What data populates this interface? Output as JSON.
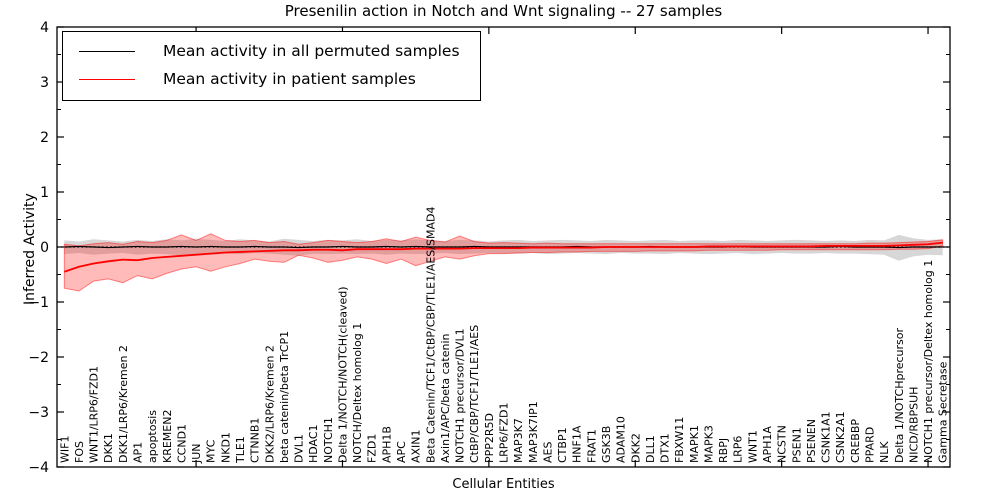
{
  "legend": {
    "items": [
      {
        "label": "Mean activity in all permuted samples",
        "color": "#000000"
      },
      {
        "label": "Mean activity in patient samples",
        "color": "#ff0000"
      }
    ]
  },
  "chart_data": {
    "type": "line",
    "title": "Presenilin action in Notch and Wnt signaling -- 27 samples",
    "xlabel": "Cellular Entities",
    "ylabel": "Inferred Activity",
    "ylim": [
      -4,
      4
    ],
    "y_ticks": [
      4,
      3,
      2,
      1,
      0,
      -1,
      -2,
      -3,
      -4
    ],
    "y_tick_labels": [
      "4",
      "3",
      "2",
      "1",
      "0",
      "−1",
      "−2",
      "−3",
      "−4"
    ],
    "x_major_ticks": [
      10,
      20,
      30,
      40,
      50,
      60
    ],
    "grid": false,
    "legend_position": "upper left",
    "zero_line": {
      "style": "dotted",
      "color": "#000000",
      "y": 0
    },
    "colors": {
      "permuted_line": "#000000",
      "patient_line": "#ff0000",
      "permuted_band": "rgba(110,110,110,0.28)",
      "patient_band": "rgba(255,0,0,0.27)",
      "patient_band_edge": "rgba(255,0,0,0.45)"
    },
    "categories": [
      "WIF1",
      "FOS",
      "WNT1/LRP6/FZD1",
      "DKK1",
      "DKK1/LRP6/Kremen 2",
      "AP1",
      "apoptosis",
      "KREMEN2",
      "CCND1",
      "JUN",
      "MYC",
      "NKD1",
      "TLE1",
      "CTNNB1",
      "DKK2/LRP6/Kremen 2",
      "beta catenin/beta TrCP1",
      "DVL1",
      "HDAC1",
      "NOTCH1",
      "Delta 1/NOTCH/NOTCH(cleaved)",
      "NOTCH/Deltex homolog 1",
      "FZD1",
      "APH1B",
      "APC",
      "AXIN1",
      "Beta Catenin/TCF1/CtBP/CBP/TLE1/AES/SMAD4",
      "Axin1/APC/beta catenin",
      "NOTCH1 precursor/DVL1",
      "CtBP/CBP/TCF1/TLE1/AES",
      "PPP2R5D",
      "LRP6/FZD1",
      "MAP3K7",
      "MAP3K7IP1",
      "AES",
      "CTBP1",
      "HNF1A",
      "FRAT1",
      "GSK3B",
      "ADAM10",
      "DKK2",
      "DLL1",
      "DTX1",
      "FBXW11",
      "MAPK1",
      "MAPK3",
      "RBPJ",
      "LRP6",
      "WNT1",
      "APH1A",
      "NCSTN",
      "PSEN1",
      "PSENEN",
      "CSNK1A1",
      "CSNK2A1",
      "CREBBP",
      "PPARD",
      "NLK",
      "Delta 1/NOTCHprecursor",
      "NICD/RBPSUH",
      "NOTCH1 precursor/Deltex homolog 1",
      "Gamma Secretase"
    ],
    "series": [
      {
        "name": "Mean activity in all permuted samples",
        "color": "#000000",
        "values": [
          0,
          0.01,
          0,
          -0.01,
          0,
          0.01,
          0,
          0,
          0.01,
          0,
          0.01,
          0,
          0,
          0.01,
          0,
          0,
          -0.01,
          0,
          0,
          0.01,
          0,
          0,
          0.01,
          0,
          0.01,
          0,
          0,
          0,
          0.01,
          0,
          0,
          0,
          0,
          0,
          0,
          0.01,
          0,
          0,
          0,
          0,
          0.01,
          0,
          0,
          0,
          0,
          0,
          0.01,
          0,
          0,
          0,
          0,
          0,
          0,
          0.01,
          0,
          0,
          0,
          -0.01,
          0,
          0,
          0
        ],
        "band_upper": [
          0.12,
          0.1,
          0.14,
          0.12,
          0.1,
          0.13,
          0.11,
          0.14,
          0.12,
          0.15,
          0.13,
          0.11,
          0.14,
          0.12,
          0.1,
          0.15,
          0.13,
          0.11,
          0.13,
          0.12,
          0.14,
          0.11,
          0.13,
          0.12,
          0.14,
          0.12,
          0.11,
          0.13,
          0.12,
          0.1,
          0.12,
          0.13,
          0.11,
          0.12,
          0.13,
          0.12,
          0.11,
          0.13,
          0.12,
          0.11,
          0.12,
          0.13,
          0.11,
          0.12,
          0.12,
          0.11,
          0.13,
          0.12,
          0.11,
          0.12,
          0.13,
          0.12,
          0.11,
          0.12,
          0.11,
          0.13,
          0.12,
          0.22,
          0.16,
          0.13,
          0.14
        ],
        "band_lower": [
          -0.13,
          -0.11,
          -0.14,
          -0.12,
          -0.11,
          -0.14,
          -0.12,
          -0.13,
          -0.15,
          -0.12,
          -0.14,
          -0.12,
          -0.13,
          -0.11,
          -0.12,
          -0.14,
          -0.16,
          -0.12,
          -0.13,
          -0.12,
          -0.13,
          -0.12,
          -0.14,
          -0.12,
          -0.13,
          -0.12,
          -0.11,
          -0.13,
          -0.12,
          -0.11,
          -0.12,
          -0.12,
          -0.11,
          -0.13,
          -0.12,
          -0.11,
          -0.12,
          -0.13,
          -0.11,
          -0.12,
          -0.12,
          -0.13,
          -0.11,
          -0.12,
          -0.13,
          -0.12,
          -0.11,
          -0.13,
          -0.12,
          -0.11,
          -0.12,
          -0.12,
          -0.11,
          -0.12,
          -0.12,
          -0.13,
          -0.14,
          -0.25,
          -0.17,
          -0.14,
          -0.15
        ]
      },
      {
        "name": "Mean activity in patient samples",
        "color": "#ff0000",
        "values": [
          -0.45,
          -0.36,
          -0.3,
          -0.26,
          -0.23,
          -0.24,
          -0.2,
          -0.18,
          -0.16,
          -0.14,
          -0.12,
          -0.1,
          -0.09,
          -0.08,
          -0.07,
          -0.06,
          -0.06,
          -0.05,
          -0.05,
          -0.06,
          -0.04,
          -0.04,
          -0.04,
          -0.04,
          -0.03,
          -0.03,
          -0.03,
          -0.03,
          -0.02,
          -0.02,
          -0.02,
          -0.02,
          -0.01,
          -0.01,
          -0.01,
          -0.01,
          -0.01,
          0,
          0,
          0,
          0,
          0,
          0,
          0,
          0.01,
          0.01,
          0.01,
          0.01,
          0.01,
          0.01,
          0.01,
          0.01,
          0.02,
          0.02,
          0.02,
          0.02,
          0.02,
          0.03,
          0.04,
          0.05,
          0.08
        ],
        "band_upper": [
          0.05,
          0.02,
          0.06,
          0.08,
          0.05,
          0.1,
          0.08,
          0.12,
          0.22,
          0.12,
          0.24,
          0.12,
          0.1,
          0.12,
          0.08,
          0.1,
          0.05,
          0.08,
          0.12,
          0.1,
          0.08,
          0.1,
          0.15,
          0.1,
          0.18,
          0.12,
          0.09,
          0.2,
          0.1,
          0.07,
          0.08,
          0.07,
          0.06,
          0.07,
          0.06,
          0.06,
          0.06,
          0.06,
          0.06,
          0.06,
          0.06,
          0.06,
          0.06,
          0.06,
          0.06,
          0.06,
          0.06,
          0.06,
          0.06,
          0.06,
          0.06,
          0.06,
          0.06,
          0.06,
          0.06,
          0.07,
          0.07,
          0.08,
          0.09,
          0.1,
          0.13
        ],
        "band_lower": [
          -0.75,
          -0.8,
          -0.62,
          -0.58,
          -0.65,
          -0.52,
          -0.58,
          -0.48,
          -0.4,
          -0.36,
          -0.44,
          -0.36,
          -0.3,
          -0.22,
          -0.26,
          -0.28,
          -0.15,
          -0.2,
          -0.28,
          -0.24,
          -0.18,
          -0.22,
          -0.3,
          -0.22,
          -0.34,
          -0.26,
          -0.18,
          -0.22,
          -0.16,
          -0.12,
          -0.12,
          -0.11,
          -0.1,
          -0.1,
          -0.09,
          -0.09,
          -0.08,
          -0.08,
          -0.08,
          -0.08,
          -0.07,
          -0.07,
          -0.07,
          -0.07,
          -0.06,
          -0.06,
          -0.06,
          -0.06,
          -0.06,
          -0.05,
          -0.05,
          -0.05,
          -0.05,
          -0.05,
          -0.05,
          -0.05,
          -0.05,
          -0.04,
          -0.04,
          -0.03,
          0.02
        ]
      }
    ]
  }
}
